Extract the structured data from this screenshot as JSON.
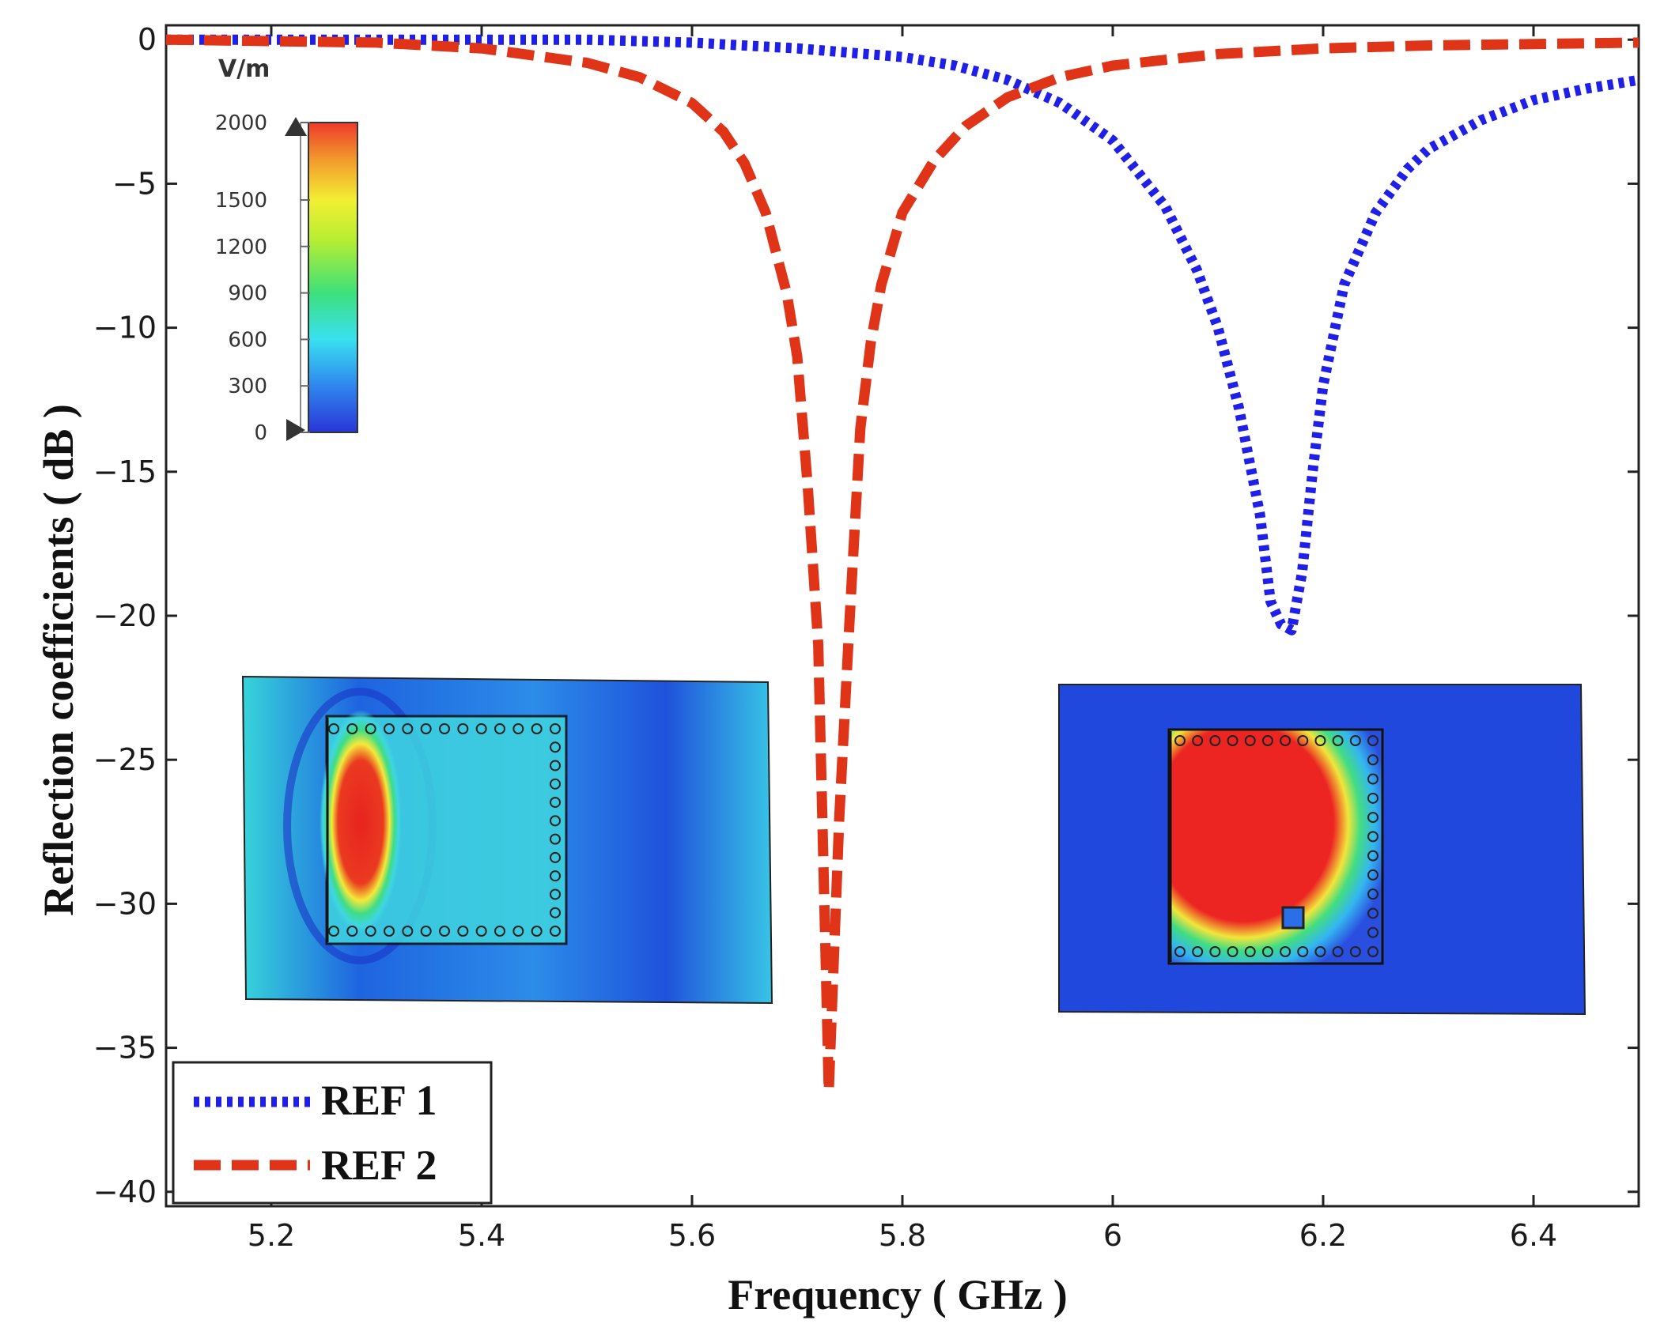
{
  "chart_data": {
    "type": "line",
    "xlabel": "Frequency ( GHz )",
    "ylabel": "Reflection coefficients ( dB )",
    "xlim": [
      5.1,
      6.5
    ],
    "ylim": [
      -40.5,
      0.5
    ],
    "xticks": [
      5.2,
      5.4,
      5.6,
      5.8,
      6,
      6.2,
      6.4
    ],
    "xtick_labels": [
      "5.2",
      "5.4",
      "5.6",
      "5.8",
      "6",
      "6.2",
      "6.4"
    ],
    "yticks": [
      0,
      -5,
      -10,
      -15,
      -20,
      -25,
      -30,
      -35,
      -40
    ],
    "ytick_labels": [
      "0",
      "−5",
      "−10",
      "−15",
      "−20",
      "−25",
      "−30",
      "−35",
      "−40"
    ],
    "legend_position": "bottom-left",
    "series": [
      {
        "name": "REF 1",
        "style": "dotted",
        "color": "#1f1fe8",
        "x": [
          5.1,
          5.3,
          5.5,
          5.6,
          5.7,
          5.8,
          5.85,
          5.9,
          5.95,
          6.0,
          6.05,
          6.08,
          6.1,
          6.12,
          6.14,
          6.15,
          6.16,
          6.17,
          6.18,
          6.19,
          6.2,
          6.22,
          6.25,
          6.28,
          6.3,
          6.35,
          6.4,
          6.45,
          6.5
        ],
        "y": [
          0,
          0,
          0,
          -0.1,
          -0.3,
          -0.6,
          -0.9,
          -1.4,
          -2.2,
          -3.5,
          -5.8,
          -8.0,
          -10.0,
          -12.8,
          -16.5,
          -19.5,
          -20.3,
          -20.5,
          -18.5,
          -15.0,
          -12.0,
          -8.5,
          -6.0,
          -4.5,
          -3.8,
          -2.8,
          -2.1,
          -1.7,
          -1.4
        ]
      },
      {
        "name": "REF 2",
        "style": "dashed",
        "color": "#e03418",
        "x": [
          5.1,
          5.3,
          5.4,
          5.5,
          5.55,
          5.6,
          5.63,
          5.65,
          5.67,
          5.69,
          5.7,
          5.71,
          5.72,
          5.73,
          5.74,
          5.75,
          5.76,
          5.77,
          5.78,
          5.8,
          5.83,
          5.86,
          5.9,
          5.95,
          6.0,
          6.1,
          6.2,
          6.3,
          6.5
        ],
        "y": [
          0,
          -0.1,
          -0.3,
          -0.8,
          -1.3,
          -2.2,
          -3.2,
          -4.3,
          -6.0,
          -8.8,
          -11.0,
          -15.5,
          -21.0,
          -36.5,
          -27.0,
          -20.0,
          -13.5,
          -10.5,
          -8.5,
          -6.0,
          -4.2,
          -3.0,
          -2.0,
          -1.3,
          -0.9,
          -0.5,
          -0.3,
          -0.2,
          -0.1
        ]
      }
    ],
    "colorbar": {
      "unit": "V/m",
      "tick_labels": [
        "2000",
        "1500",
        "1200",
        "900",
        "600",
        "300",
        "0"
      ],
      "tick_values": [
        2000,
        1500,
        1200,
        900,
        600,
        300,
        0
      ],
      "range": [
        0,
        2000
      ]
    }
  }
}
